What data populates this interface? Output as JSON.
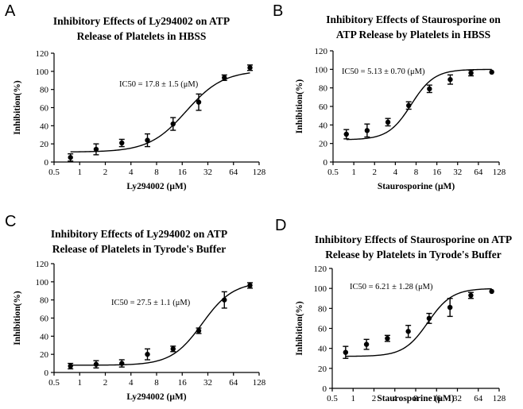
{
  "chart_data": [
    {
      "type": "scatter",
      "panel": "A",
      "title": [
        "Inhibitory Effects of Ly294002 on ATP",
        "Release of Platelets in HBSS"
      ],
      "xlabel": "Ly294002 (μM)",
      "ylabel": "Inhibition(%)",
      "xscale": "log2",
      "xticks": [
        "0.5",
        "1",
        "2",
        "4",
        "8",
        "16",
        "32",
        "64",
        "128"
      ],
      "yticks": [
        "0",
        "20",
        "40",
        "60",
        "80",
        "100",
        "120"
      ],
      "xlim": [
        0.5,
        128
      ],
      "ylim": [
        0,
        120
      ],
      "annotation": "IC50 = 17.8 ± 1.5 (μM)",
      "curve": {
        "bottom": 11,
        "top": 101,
        "ic50": 17.8,
        "hill": 2.0
      },
      "points": [
        {
          "x": 0.78,
          "y": 5,
          "err": 4
        },
        {
          "x": 1.56,
          "y": 14,
          "err": 6
        },
        {
          "x": 3.125,
          "y": 21,
          "err": 4
        },
        {
          "x": 6.25,
          "y": 24,
          "err": 7
        },
        {
          "x": 12.5,
          "y": 42,
          "err": 7
        },
        {
          "x": 25,
          "y": 66,
          "err": 9
        },
        {
          "x": 50,
          "y": 93,
          "err": 3
        },
        {
          "x": 100,
          "y": 104,
          "err": 3
        }
      ]
    },
    {
      "type": "scatter",
      "panel": "B",
      "title": [
        "Inhibitory Effects of Staurosporine on",
        "ATP Release by Platelets in HBSS"
      ],
      "xlabel": "Staurosporine (μM)",
      "ylabel": "Inhibition(%)",
      "xscale": "log2",
      "xticks": [
        "0.5",
        "1",
        "2",
        "4",
        "8",
        "16",
        "32",
        "64",
        "128"
      ],
      "yticks": [
        "0",
        "20",
        "40",
        "60",
        "80",
        "100",
        "120"
      ],
      "xlim": [
        0.5,
        128
      ],
      "ylim": [
        0,
        120
      ],
      "annotation": "IC50 = 5.13 ± 0.70 (μM)",
      "curve": {
        "bottom": 24,
        "top": 100,
        "ic50": 6.8,
        "hill": 2.6
      },
      "points": [
        {
          "x": 0.78,
          "y": 30,
          "err": 5
        },
        {
          "x": 1.56,
          "y": 34,
          "err": 7
        },
        {
          "x": 3.125,
          "y": 43,
          "err": 4
        },
        {
          "x": 6.25,
          "y": 61,
          "err": 4
        },
        {
          "x": 12.5,
          "y": 79,
          "err": 4
        },
        {
          "x": 25,
          "y": 89,
          "err": 5
        },
        {
          "x": 50,
          "y": 96,
          "err": 3
        },
        {
          "x": 100,
          "y": 97,
          "err": 0
        }
      ]
    },
    {
      "type": "scatter",
      "panel": "C",
      "title": [
        "Inhibitory Effects of Ly294002 on ATP",
        "Release of Platelets in Tyrode's Buffer"
      ],
      "xlabel": "Ly294002 (μM)",
      "ylabel": "Inhibition(%)",
      "xscale": "log2",
      "xticks": [
        "0.5",
        "1",
        "2",
        "4",
        "8",
        "16",
        "32",
        "64",
        "128"
      ],
      "yticks": [
        "0",
        "20",
        "40",
        "60",
        "80",
        "100",
        "120"
      ],
      "xlim": [
        0.5,
        128
      ],
      "ylim": [
        0,
        120
      ],
      "annotation": "IC50 = 27.5 ± 1.1 (μM)",
      "curve": {
        "bottom": 8,
        "top": 100,
        "ic50": 27.5,
        "hill": 2.4
      },
      "points": [
        {
          "x": 0.78,
          "y": 7,
          "err": 3
        },
        {
          "x": 1.56,
          "y": 9,
          "err": 4
        },
        {
          "x": 3.125,
          "y": 10,
          "err": 4
        },
        {
          "x": 6.25,
          "y": 20,
          "err": 6
        },
        {
          "x": 12.5,
          "y": 26,
          "err": 3
        },
        {
          "x": 25,
          "y": 46,
          "err": 3
        },
        {
          "x": 50,
          "y": 80,
          "err": 9
        },
        {
          "x": 100,
          "y": 96,
          "err": 3
        }
      ]
    },
    {
      "type": "scatter",
      "panel": "D",
      "title": [
        "Inhibitory Effects of Staurosporine on ATP",
        "Release by Platelets in Tyrode's Buffer"
      ],
      "xlabel": "Staurosporine (μM)",
      "ylabel": "Inhibition(%)",
      "xscale": "log2",
      "xticks": [
        "0.5",
        "1",
        "2",
        "4",
        "8",
        "16",
        "32",
        "64",
        "128"
      ],
      "yticks": [
        "0",
        "20",
        "40",
        "60",
        "80",
        "100",
        "120"
      ],
      "xlim": [
        0.5,
        128
      ],
      "ylim": [
        0,
        120
      ],
      "annotation": "IC50 = 6.21 ± 1.28 (μM)",
      "curve": {
        "bottom": 32,
        "top": 100,
        "ic50": 12.0,
        "hill": 2.5
      },
      "points": [
        {
          "x": 0.78,
          "y": 36,
          "err": 6
        },
        {
          "x": 1.56,
          "y": 44,
          "err": 5
        },
        {
          "x": 3.125,
          "y": 50,
          "err": 3
        },
        {
          "x": 6.25,
          "y": 57,
          "err": 6
        },
        {
          "x": 12.5,
          "y": 70,
          "err": 5
        },
        {
          "x": 25,
          "y": 81,
          "err": 9
        },
        {
          "x": 50,
          "y": 93,
          "err": 3
        },
        {
          "x": 100,
          "y": 97,
          "err": 0
        }
      ]
    }
  ]
}
